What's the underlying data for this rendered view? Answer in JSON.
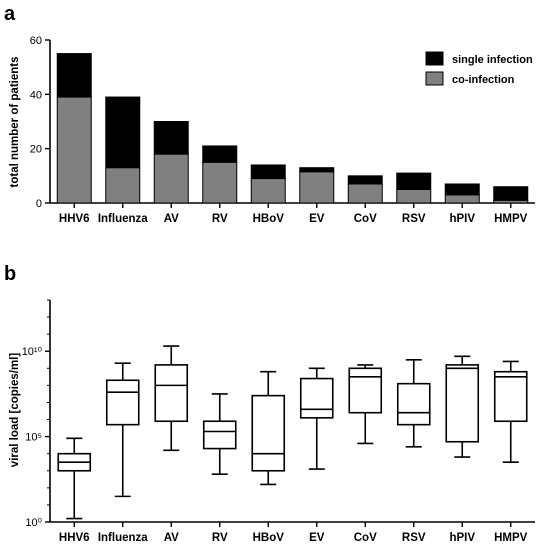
{
  "panels": {
    "a_label": "a",
    "b_label": "b"
  },
  "chart_data": [
    {
      "type": "bar",
      "stacked": true,
      "ylabel": "total number of patients",
      "ylim": [
        0,
        60
      ],
      "yticks": [
        "0",
        "20",
        "40",
        "60"
      ],
      "categories": [
        "HHV6",
        "Influenza",
        "AV",
        "RV",
        "HBoV",
        "EV",
        "CoV",
        "RSV",
        "hPIV",
        "HMPV"
      ],
      "legend_position": "top-right",
      "series": [
        {
          "name": "co-infection",
          "color": "#808080",
          "values": [
            39,
            13,
            18,
            15,
            9,
            11.5,
            7,
            5,
            3,
            1
          ]
        },
        {
          "name": "single infection",
          "color": "#000000",
          "values": [
            16,
            26,
            12,
            6,
            5,
            1.5,
            3,
            6,
            4,
            5
          ]
        }
      ]
    },
    {
      "type": "box",
      "scale": "log",
      "ylabel": "viral load [copies/ml]",
      "ylim_exponent": [
        0,
        13
      ],
      "ytick_labels": [
        "10⁰",
        "10⁵",
        "10¹⁰"
      ],
      "categories": [
        "HHV6",
        "Influenza",
        "AV",
        "RV",
        "HBoV",
        "EV",
        "CoV",
        "RSV",
        "hPIV",
        "HMPV"
      ],
      "boxes_log10": [
        {
          "min": 0.2,
          "q1": 3.0,
          "median": 3.5,
          "q3": 4.0,
          "max": 4.9
        },
        {
          "min": 1.5,
          "q1": 5.7,
          "median": 7.6,
          "q3": 8.3,
          "max": 9.3
        },
        {
          "min": 4.2,
          "q1": 5.9,
          "median": 8.0,
          "q3": 9.2,
          "max": 10.3
        },
        {
          "min": 2.8,
          "q1": 4.3,
          "median": 5.3,
          "q3": 5.9,
          "max": 7.5
        },
        {
          "min": 2.2,
          "q1": 3.0,
          "median": 4.0,
          "q3": 7.4,
          "max": 8.8
        },
        {
          "min": 3.1,
          "q1": 6.1,
          "median": 6.6,
          "q3": 8.4,
          "max": 9.0
        },
        {
          "min": 4.6,
          "q1": 6.4,
          "median": 8.5,
          "q3": 9.0,
          "max": 9.2
        },
        {
          "min": 4.4,
          "q1": 5.7,
          "median": 6.4,
          "q3": 8.1,
          "max": 9.5
        },
        {
          "min": 3.8,
          "q1": 4.7,
          "median": 9.0,
          "q3": 9.2,
          "max": 9.7
        },
        {
          "min": 3.5,
          "q1": 5.9,
          "median": 8.5,
          "q3": 8.8,
          "max": 9.4
        }
      ]
    }
  ]
}
